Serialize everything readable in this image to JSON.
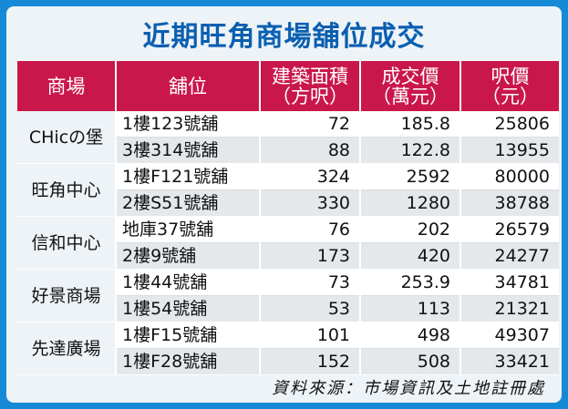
{
  "title": "近期旺角商場舖位成交",
  "headers": {
    "mall": "商場",
    "unit": "舖位",
    "area_l1": "建築面積",
    "area_l2": "（方呎）",
    "price_l1": "成交價",
    "price_l2": "（萬元）",
    "psf_l1": "呎價",
    "psf_l2": "（元）"
  },
  "rows": [
    {
      "mall": "CHicの堡",
      "unit": "1樓123號舖",
      "area": "72",
      "price": "185.8",
      "psf": "25806"
    },
    {
      "mall": "",
      "unit": "3樓314號舖",
      "area": "88",
      "price": "122.8",
      "psf": "13955"
    },
    {
      "mall": "旺角中心",
      "unit": "1樓F121號舖",
      "area": "324",
      "price": "2592",
      "psf": "80000"
    },
    {
      "mall": "",
      "unit": "2樓S51號舖",
      "area": "330",
      "price": "1280",
      "psf": "38788"
    },
    {
      "mall": "信和中心",
      "unit": "地庫37號舖",
      "area": "76",
      "price": "202",
      "psf": "26579"
    },
    {
      "mall": "",
      "unit": "2樓9號舖",
      "area": "173",
      "price": "420",
      "psf": "24277"
    },
    {
      "mall": "好景商場",
      "unit": "1樓44號舖",
      "area": "73",
      "price": "253.9",
      "psf": "34781"
    },
    {
      "mall": "",
      "unit": "1樓54號舖",
      "area": "53",
      "price": "113",
      "psf": "21321"
    },
    {
      "mall": "先達廣場",
      "unit": "1樓F15號舖",
      "area": "101",
      "price": "498",
      "psf": "49307"
    },
    {
      "mall": "",
      "unit": "1樓F28號舖",
      "area": "152",
      "price": "508",
      "psf": "33421"
    }
  ],
  "source": "資料來源：市場資訊及土地註冊處",
  "colors": {
    "background": "#1689d6",
    "title": "#0a5fb0",
    "header": "#c9174c"
  }
}
